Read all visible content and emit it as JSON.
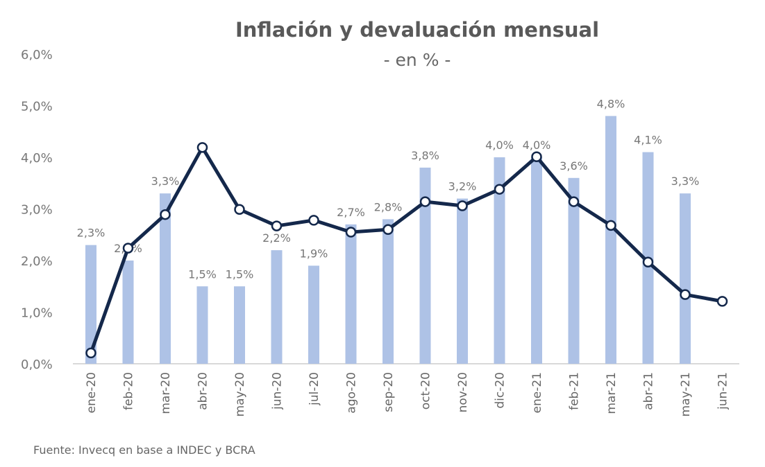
{
  "chart_data": {
    "type": "bar+line",
    "title": "Inflación y devaluación mensual",
    "subtitle": "- en % -",
    "source": "Fuente: Invecq en base a INDEC y BCRA",
    "categories": [
      "ene-20",
      "feb-20",
      "mar-20",
      "abr-20",
      "may-20",
      "jun-20",
      "jul-20",
      "ago-20",
      "sep-20",
      "oct-20",
      "nov-20",
      "dic-20",
      "ene-21",
      "feb-21",
      "mar-21",
      "abr-21",
      "may-21",
      "jun-21"
    ],
    "ylim": [
      0,
      6
    ],
    "yticks": [
      "0,0%",
      "1,0%",
      "2,0%",
      "3,0%",
      "4,0%",
      "5,0%",
      "6,0%"
    ],
    "grid": false,
    "legend": "none",
    "series": [
      {
        "type": "bar",
        "color": "#aec2e6",
        "values": [
          2.3,
          2.0,
          3.3,
          1.5,
          1.5,
          2.2,
          1.9,
          2.7,
          2.8,
          3.8,
          3.2,
          4.0,
          4.0,
          3.6,
          4.8,
          4.1,
          3.3,
          null
        ],
        "labels": [
          "2,3%",
          "2,0%",
          "3,3%",
          "1,5%",
          "1,5%",
          "2,2%",
          "1,9%",
          "2,7%",
          "2,8%",
          "3,8%",
          "3,2%",
          "4,0%",
          "4,0%",
          "3,6%",
          "4,8%",
          "4,1%",
          "3,3%",
          ""
        ]
      },
      {
        "type": "line",
        "color": "#14284b",
        "values": [
          0.21,
          2.24,
          2.89,
          4.19,
          2.99,
          2.67,
          2.78,
          2.55,
          2.6,
          3.14,
          3.06,
          3.38,
          4.01,
          3.14,
          2.68,
          1.97,
          1.34,
          1.21
        ]
      }
    ]
  }
}
